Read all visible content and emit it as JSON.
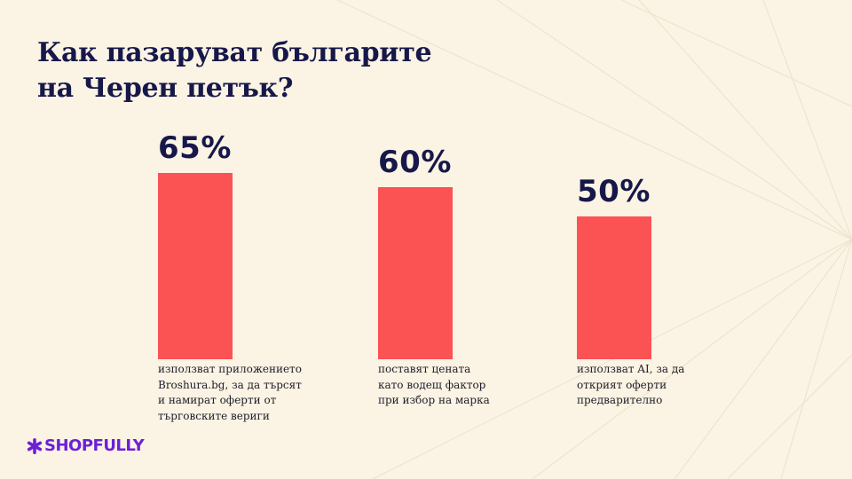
{
  "title": {
    "line1": "Как пазаруват българите",
    "line2": "на Черен петък?"
  },
  "chart_data": {
    "type": "bar",
    "categories": [
      "използват приложението Broshura.bg, за да търсят и намират оферти от търговските вериги",
      "поставят цената като водещ фактор при избор на марка",
      "използват AI, за да открият оферти предварително"
    ],
    "values": [
      65,
      60,
      50
    ],
    "value_labels": [
      "65%",
      "60%",
      "50%"
    ],
    "label_lines": [
      [
        "използват приложението",
        "Broshura.bg, за да търсят",
        "и намират оферти от",
        "търговските вериги"
      ],
      [
        "поставят цената",
        "като водещ фактор",
        "при избор на марка"
      ],
      [
        "използват AI, за да",
        "открият оферти",
        "предварително"
      ]
    ],
    "ylim": [
      0,
      100
    ],
    "bar_color": "#fb5254",
    "grid": false
  },
  "brand": {
    "name": "SHOPFULLY",
    "icon": "asterisk-icon",
    "color": "#6d1fd6"
  },
  "colors": {
    "background": "#fbf3e3",
    "title": "#17184a"
  }
}
